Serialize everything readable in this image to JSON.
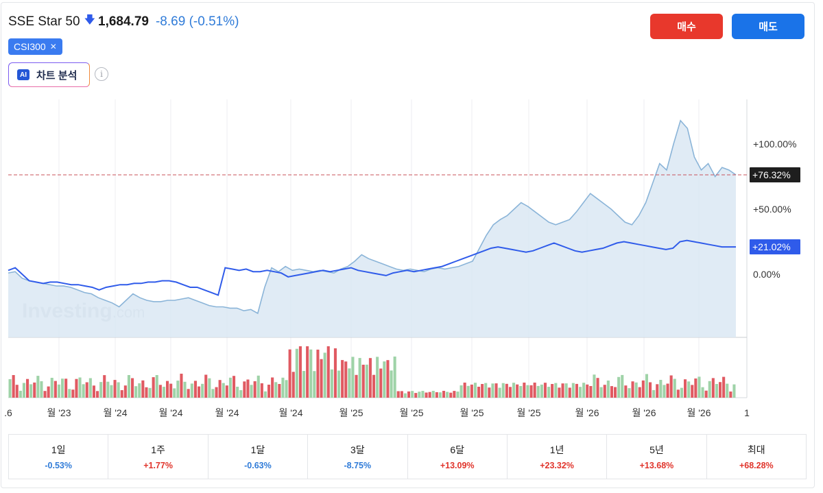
{
  "header": {
    "name": "SSE Star 50",
    "price": "1,684.79",
    "change": "-8.69 (-0.51%)",
    "direction": "down"
  },
  "compare_chip": {
    "label": "CSI300",
    "close": "✕"
  },
  "ai_button": {
    "badge": "AI",
    "label": "차트 분석"
  },
  "info_icon": "i",
  "buttons": {
    "buy": "매수",
    "sell": "매도"
  },
  "watermark": {
    "main": "Investing",
    "suffix": ".com"
  },
  "colors": {
    "main_line": "#8ab4d8",
    "main_fill": "#dbe7f3",
    "compare_line": "#2f5bea",
    "ref_line": "#c9505a",
    "vol_up": "#9fd3a8",
    "vol_down": "#e05a62",
    "neg": "#2f7bd8",
    "pos": "#e0342b"
  },
  "chart_data": {
    "type": "line",
    "y_unit": "%",
    "ylim": [
      -40,
      130
    ],
    "yticks": [
      "+100.00%",
      "+50.00%",
      "0.00%"
    ],
    "ytick_values": [
      100,
      50,
      0
    ],
    "x_labels": [
      ".6",
      "월 '23",
      "월 '24",
      "월 '24",
      "월 '24",
      "월 '24",
      "월 '25",
      "월 '25",
      "월 '25",
      "월 '25",
      "월 '26",
      "월 '26",
      "월 '26",
      "1"
    ],
    "series": [
      {
        "name": "SSE Star 50",
        "end_label": "+76.32%",
        "values": [
          1,
          2,
          -3,
          -5,
          -6,
          -7,
          -8,
          -9,
          -9,
          -10,
          -12,
          -14,
          -15,
          -18,
          -20,
          -22,
          -25,
          -20,
          -15,
          -18,
          -20,
          -21,
          -21,
          -20,
          -20,
          -19,
          -18,
          -20,
          -22,
          -24,
          -25,
          -25,
          -26,
          -26,
          -28,
          -27,
          -30,
          -10,
          5,
          2,
          6,
          3,
          4,
          3,
          2,
          3,
          2,
          1,
          4,
          6,
          10,
          15,
          12,
          10,
          8,
          6,
          4,
          3,
          4,
          3,
          2,
          4,
          5,
          4,
          5,
          6,
          8,
          10,
          20,
          30,
          38,
          42,
          45,
          50,
          55,
          52,
          48,
          44,
          40,
          38,
          40,
          42,
          48,
          55,
          62,
          58,
          54,
          50,
          45,
          40,
          38,
          45,
          55,
          70,
          85,
          80,
          100,
          118,
          112,
          90,
          80,
          85,
          75,
          82,
          80,
          76.32
        ]
      },
      {
        "name": "CSI300",
        "end_label": "+21.02%",
        "values": [
          3,
          5,
          0,
          -5,
          -6,
          -7,
          -6,
          -6,
          -7,
          -8,
          -8,
          -9,
          -10,
          -12,
          -10,
          -9,
          -8,
          -8,
          -7,
          -7,
          -6,
          -6,
          -5,
          -5,
          -6,
          -8,
          -10,
          -10,
          -12,
          -14,
          -16,
          5,
          4,
          3,
          4,
          2,
          2,
          3,
          2,
          1,
          -2,
          -1,
          0,
          1,
          2,
          3,
          2,
          3,
          4,
          5,
          3,
          2,
          1,
          0,
          -1,
          1,
          2,
          3,
          2,
          3,
          4,
          5,
          6,
          8,
          10,
          12,
          14,
          16,
          18,
          20,
          21,
          20,
          19,
          18,
          17,
          18,
          20,
          22,
          24,
          22,
          20,
          18,
          17,
          18,
          19,
          20,
          22,
          24,
          25,
          24,
          23,
          22,
          21,
          20,
          19,
          20,
          25,
          26,
          25,
          24,
          23,
          22,
          21,
          21,
          21.02
        ]
      }
    ],
    "volume_up_pattern": [
      1,
      0,
      0,
      1,
      1,
      0,
      1,
      0,
      1,
      1,
      0,
      0,
      1,
      0,
      1,
      1,
      0,
      1,
      0,
      0,
      1,
      1,
      0,
      1,
      0,
      0,
      1,
      0,
      1,
      1,
      0,
      1,
      0,
      0,
      1,
      0,
      1,
      1,
      0,
      0,
      1,
      0,
      1,
      0,
      1,
      0,
      0,
      1,
      1,
      0,
      1,
      0,
      1,
      0,
      0,
      1,
      0,
      1,
      1,
      0,
      0,
      1,
      0,
      1,
      0,
      1,
      1,
      0,
      0,
      1,
      0,
      1,
      0,
      1,
      0,
      0,
      1,
      0,
      1,
      1,
      0,
      0,
      1,
      0,
      1,
      0,
      1,
      1,
      0,
      0,
      1,
      0,
      1,
      0,
      1,
      0,
      0,
      1,
      1,
      0,
      1,
      0,
      1,
      0,
      0,
      1,
      0,
      1,
      0,
      1,
      1,
      0,
      0,
      1,
      0,
      1,
      0,
      1,
      1,
      0,
      0,
      1,
      0,
      1,
      0,
      1,
      0,
      0,
      1,
      1,
      0,
      1,
      0,
      1,
      0,
      0,
      1,
      0,
      1,
      0,
      1,
      1,
      0,
      0,
      1,
      0,
      1,
      0,
      1,
      0,
      0,
      1,
      1,
      0,
      1,
      0,
      1,
      0,
      0,
      1,
      0,
      1,
      0,
      1,
      1,
      0,
      0,
      1,
      0,
      1,
      0,
      1,
      0,
      0,
      1,
      1,
      0,
      1,
      0,
      1,
      0,
      0,
      1,
      0,
      1,
      0,
      1,
      1,
      0,
      0,
      1,
      0,
      1,
      0,
      1,
      0,
      0,
      1,
      1,
      0,
      1,
      0,
      1,
      0,
      0,
      1,
      0,
      1
    ]
  },
  "performance": [
    {
      "label": "1일",
      "value": "-0.53%",
      "sign": "neg"
    },
    {
      "label": "1주",
      "value": "+1.77%",
      "sign": "pos"
    },
    {
      "label": "1달",
      "value": "-0.63%",
      "sign": "neg"
    },
    {
      "label": "3달",
      "value": "-8.75%",
      "sign": "neg"
    },
    {
      "label": "6달",
      "value": "+13.09%",
      "sign": "pos"
    },
    {
      "label": "1년",
      "value": "+23.32%",
      "sign": "pos"
    },
    {
      "label": "5년",
      "value": "+13.68%",
      "sign": "pos"
    },
    {
      "label": "최대",
      "value": "+68.28%",
      "sign": "pos"
    }
  ]
}
